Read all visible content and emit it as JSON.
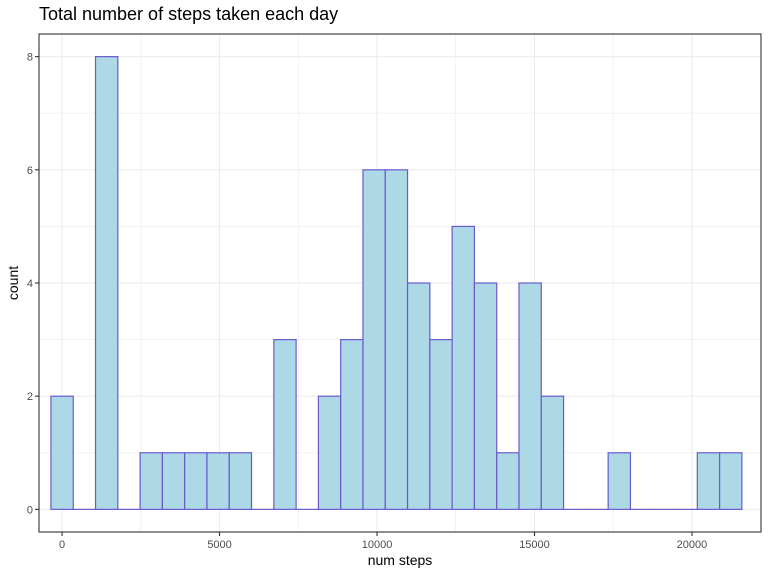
{
  "chart_data": {
    "type": "bar",
    "title": "Total number of steps taken each day",
    "xlabel": "num steps",
    "ylabel": "count",
    "xlim": [
      -733,
      22192
    ],
    "ylim": [
      -0.4,
      8.4
    ],
    "x_ticks": [
      0,
      5000,
      10000,
      15000,
      20000
    ],
    "x_tick_labels": [
      "0",
      "5000",
      "10000",
      "15000",
      "20000"
    ],
    "y_ticks": [
      0,
      2,
      4,
      6,
      8
    ],
    "y_tick_labels": [
      "0",
      "2",
      "4",
      "6",
      "8"
    ],
    "grid": true,
    "bin_width": 707.7,
    "bin_centers": [
      0,
      707.7,
      1415.4,
      2123.1,
      2830.8,
      3538.5,
      4246.2,
      4953.9,
      5661.6,
      6369.3,
      7077,
      7784.7,
      8492.4,
      9200.1,
      9907.8,
      10615.5,
      11323.2,
      12030.9,
      12738.6,
      13446.3,
      14154,
      14861.7,
      15569.4,
      16277.1,
      16984.8,
      17692.5,
      18400.2,
      19107.9,
      19815.6,
      20523.3,
      21231
    ],
    "values": [
      2,
      0,
      8,
      0,
      1,
      1,
      1,
      1,
      1,
      0,
      3,
      0,
      2,
      3,
      6,
      6,
      4,
      3,
      5,
      4,
      1,
      4,
      2,
      0,
      0,
      1,
      0,
      0,
      0,
      1,
      1
    ],
    "fill_color": "#add8e6",
    "border_color": "#6a5acd",
    "panel_border_color": "#333333",
    "grid_color": "#ebebeb"
  }
}
